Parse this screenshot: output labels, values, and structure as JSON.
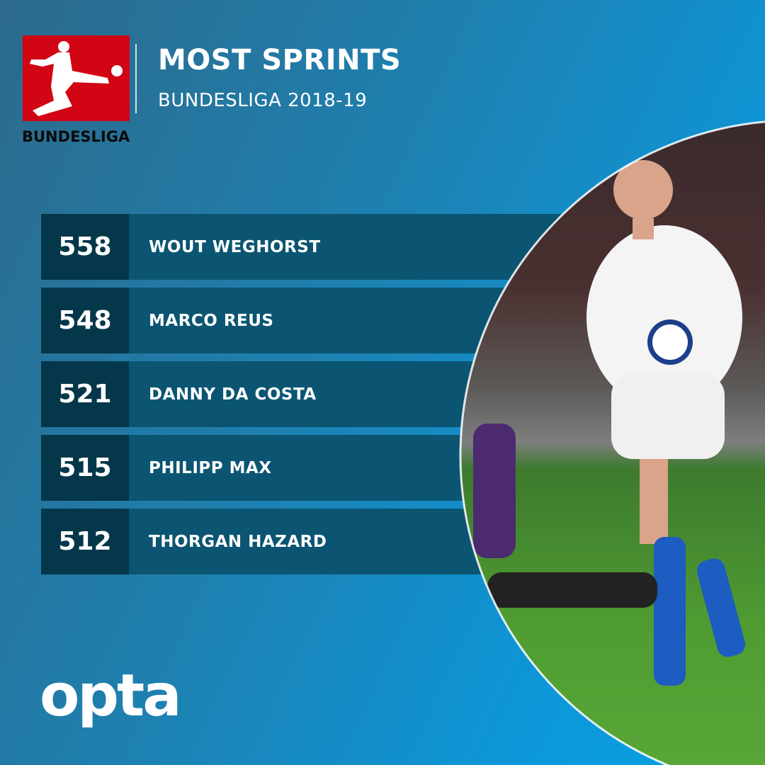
{
  "header": {
    "logo_text": "BUNDESLIGA",
    "title": "MOST SPRINTS",
    "subtitle": "BUNDESLIGA 2018-19"
  },
  "rows": [
    {
      "value": "558",
      "name": "WOUT WEGHORST"
    },
    {
      "value": "548",
      "name": "MARCO REUS"
    },
    {
      "value": "521",
      "name": "DANNY DA COSTA"
    },
    {
      "value": "515",
      "name": "PHILIPP MAX"
    },
    {
      "value": "512",
      "name": "THORGAN HAZARD"
    }
  ],
  "footer": {
    "brand": "opta"
  },
  "colors": {
    "logo_red": "#d20515",
    "value_bg": "#04374a",
    "name_bg": "#0b5572",
    "background": "#1f7fae"
  }
}
